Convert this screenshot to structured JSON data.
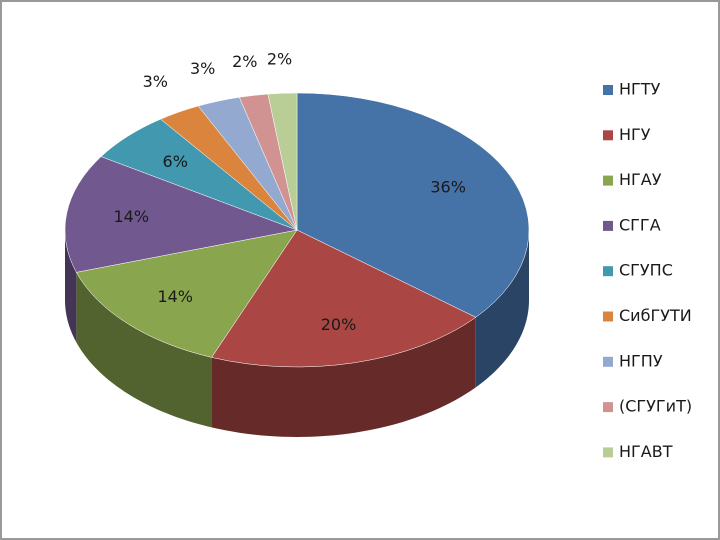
{
  "chart_data": {
    "type": "pie",
    "categories": [
      "НГТУ",
      "НГУ",
      "НГАУ",
      "СГГА",
      "СГУПС",
      "СибГУТИ",
      "НГПУ",
      "(СГУГиТ)",
      "НГАВТ"
    ],
    "values": [
      36,
      20,
      14,
      14,
      6,
      3,
      3,
      2,
      2
    ],
    "value_labels": [
      "36%",
      "20%",
      "14%",
      "14%",
      "6%",
      "3%",
      "3%",
      "2%",
      "2%"
    ],
    "colors": [
      "#4572A7",
      "#AA4643",
      "#89A54E",
      "#71588F",
      "#4198AF",
      "#DB843D",
      "#93A9CF",
      "#D19392",
      "#B9CD96"
    ],
    "legend": "right"
  }
}
